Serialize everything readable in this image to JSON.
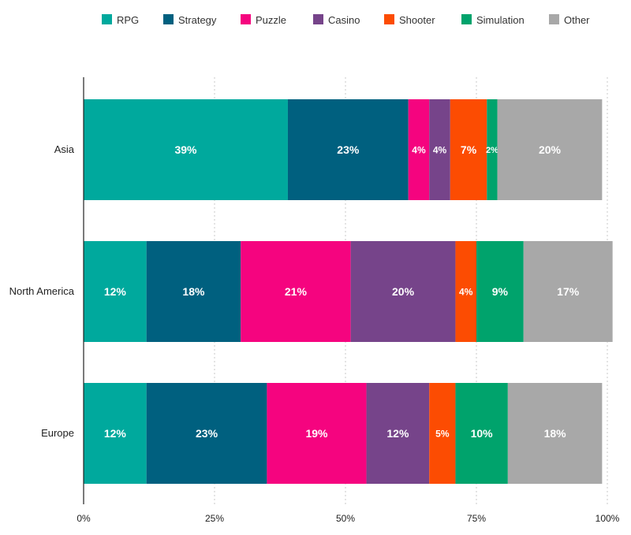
{
  "chart_data": {
    "type": "bar",
    "orientation": "horizontal",
    "stacked": true,
    "categories": [
      "Asia",
      "North America",
      "Europe"
    ],
    "series": [
      {
        "name": "RPG",
        "color": "#00a99d",
        "values": [
          39,
          12,
          12
        ],
        "labels": [
          "39%",
          "12%",
          "12%"
        ]
      },
      {
        "name": "Strategy",
        "color": "#00607f",
        "values": [
          23,
          18,
          23
        ],
        "labels": [
          "23%",
          "18%",
          "23%"
        ]
      },
      {
        "name": "Puzzle",
        "color": "#f5047f",
        "values": [
          4,
          21,
          19
        ],
        "labels": [
          "4%",
          "21%",
          "19%"
        ]
      },
      {
        "name": "Casino",
        "color": "#76448a",
        "values": [
          4,
          20,
          12
        ],
        "labels": [
          "4%",
          "20%",
          "12%"
        ]
      },
      {
        "name": "Shooter",
        "color": "#fc4c02",
        "values": [
          7,
          4,
          5
        ],
        "labels": [
          "7%",
          "4%",
          "5%"
        ]
      },
      {
        "name": "Simulation",
        "color": "#00a36c",
        "values": [
          2,
          9,
          10
        ],
        "labels": [
          "2%",
          "9%",
          "10%"
        ]
      },
      {
        "name": "Other",
        "color": "#a8a8a8",
        "values": [
          20,
          17,
          18
        ],
        "labels": [
          "20%",
          "17%",
          "18%"
        ]
      }
    ],
    "xlim": [
      0,
      100
    ],
    "xticks": [
      "0%",
      "25%",
      "50%",
      "75%",
      "100%"
    ],
    "grid": true,
    "legend_position": "top"
  }
}
